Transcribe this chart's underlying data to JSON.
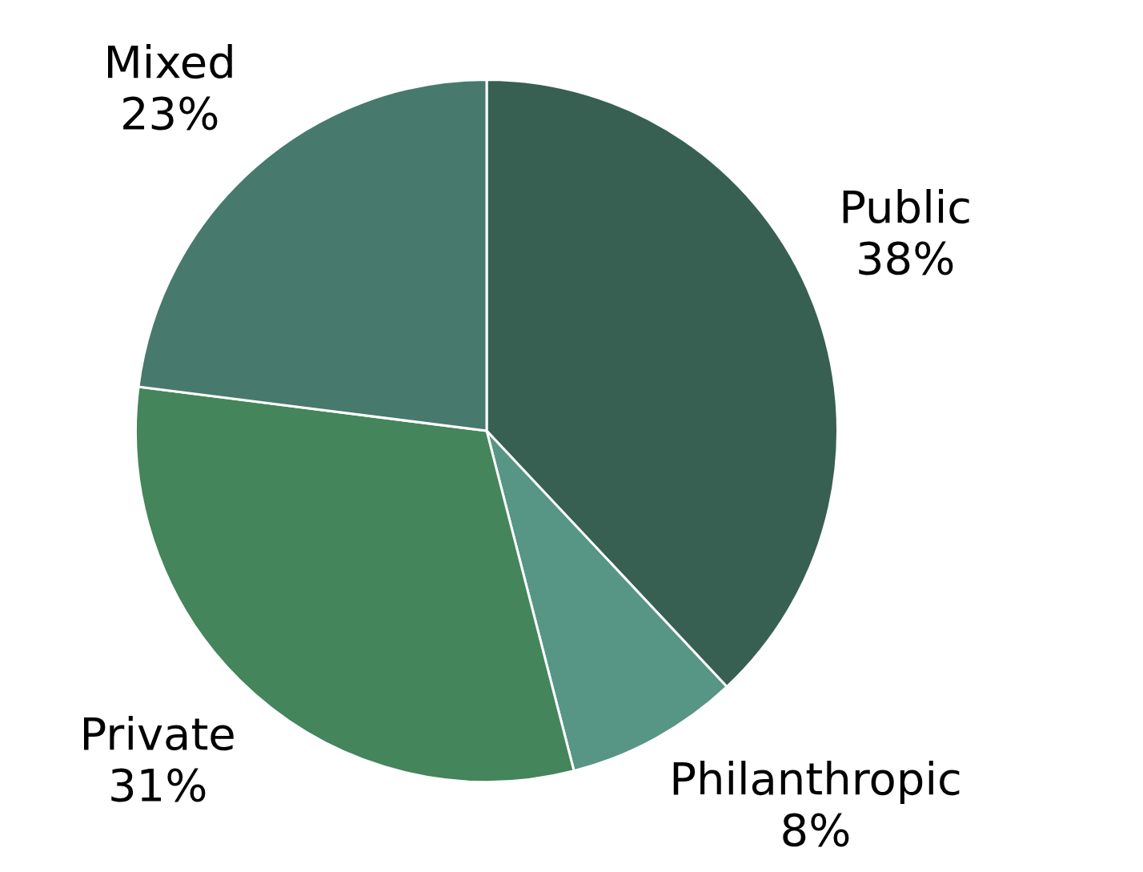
{
  "chart_data": {
    "type": "pie",
    "categories": [
      "Public",
      "Philanthropic",
      "Private",
      "Mixed"
    ],
    "values": [
      38,
      8,
      31,
      23
    ],
    "value_labels": [
      "38%",
      "8%",
      "31%",
      "23%"
    ],
    "colors": [
      "#386052",
      "#579585",
      "#44855c",
      "#477a6c"
    ],
    "legend": false
  }
}
